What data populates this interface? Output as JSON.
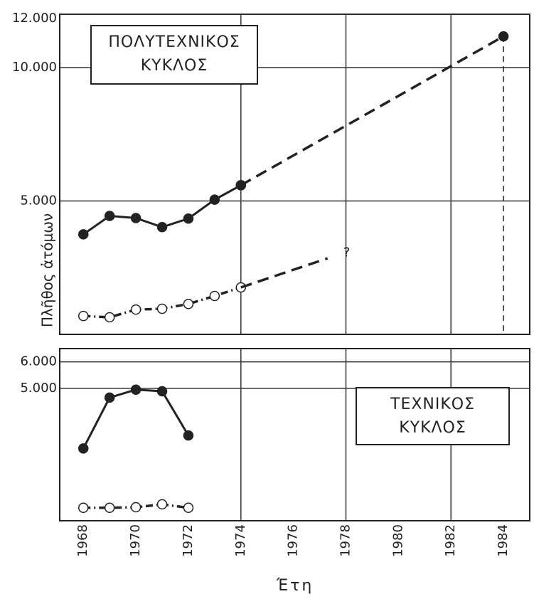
{
  "chart_data": [
    {
      "type": "line",
      "title": [
        "ΠΟΛΥΤΕΧΝΙΚΟΣ",
        "ΚΥΚΛΟΣ"
      ],
      "xlim": [
        1967.1,
        1985
      ],
      "ylim": [
        0,
        12000
      ],
      "yticks": [
        {
          "value": 5000,
          "label": "5.000"
        },
        {
          "value": 10000,
          "label": "10.000"
        },
        {
          "value": 12000,
          "label": "12.000"
        }
      ],
      "xgrid": [
        1974,
        1978,
        1982
      ],
      "grid": true,
      "annotations": [
        {
          "text": "?",
          "x": 1977.9,
          "y": 3050
        }
      ],
      "series": [
        {
          "color": "#222",
          "style": "solid",
          "marker": "filled",
          "x": [
            1968,
            1969,
            1970,
            1971,
            1972,
            1973,
            1974
          ],
          "values": [
            3750,
            4440,
            4360,
            4020,
            4340,
            5050,
            5590
          ]
        },
        {
          "color": "#222",
          "style": "dashed",
          "marker": "filled",
          "dropline": true,
          "x": [
            1974,
            1984
          ],
          "values": [
            5590,
            11170
          ]
        },
        {
          "color": "#222",
          "style": "dashdot",
          "marker": "open",
          "x": [
            1968,
            1969,
            1970,
            1971,
            1972,
            1973,
            1974
          ],
          "values": [
            690,
            640,
            930,
            960,
            1140,
            1440,
            1760
          ]
        },
        {
          "color": "#222",
          "style": "dashed",
          "marker": "none",
          "x": [
            1974,
            1977.3
          ],
          "values": [
            1760,
            2850
          ]
        }
      ]
    },
    {
      "type": "line",
      "title": [
        "ΤΕΧΝΙΚΟΣ",
        "ΚΥΚΛΟΣ"
      ],
      "xlim": [
        1967.1,
        1985
      ],
      "ylim": [
        0,
        6500
      ],
      "yticks": [
        {
          "value": 5000,
          "label": "5.000"
        },
        {
          "value": 6000,
          "label": "6.000"
        }
      ],
      "xgrid": [
        1974,
        1978,
        1982
      ],
      "grid": true,
      "xticks": [
        1968,
        1970,
        1972,
        1974,
        1976,
        1978,
        1980,
        1982,
        1984
      ],
      "series": [
        {
          "color": "#222",
          "style": "solid",
          "marker": "filled",
          "x": [
            1968,
            1969,
            1970,
            1971,
            1972
          ],
          "values": [
            2730,
            4650,
            4950,
            4890,
            3220
          ]
        },
        {
          "color": "#222",
          "style": "dashdot",
          "marker": "open",
          "x": [
            1968,
            1969,
            1970,
            1971,
            1972
          ],
          "values": [
            490,
            490,
            510,
            620,
            490
          ]
        }
      ]
    }
  ],
  "x_label": "Έτη",
  "y_label": "Πλῆθος ἀτόμων"
}
